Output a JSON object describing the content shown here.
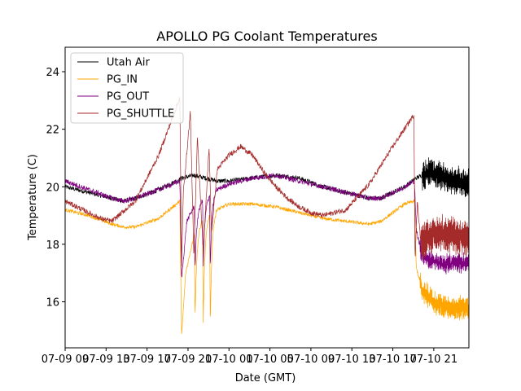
{
  "chart_data": {
    "type": "line",
    "title": "APOLLO PG Coolant Temperatures",
    "xlabel": "Date (GMT)",
    "ylabel": "Temperature (C)",
    "xlim": [
      0,
      34.5
    ],
    "ylim": [
      14.4,
      24.85
    ],
    "yticks": [
      16,
      18,
      20,
      22,
      24
    ],
    "ytick_labels": [
      "16",
      "18",
      "20",
      "22",
      "24"
    ],
    "xticks": [
      0,
      3.5,
      7,
      10.5,
      14,
      17.5,
      21,
      24.5,
      28,
      31.5
    ],
    "xtick_labels": [
      "07-09 09",
      "07-09 13",
      "07-09 17",
      "07-09 21",
      "07-10 01",
      "07-10 05",
      "07-10 09",
      "07-10 13",
      "07-10 17",
      "07-10 21"
    ],
    "x_units": "hours since 07-09 09:00 GMT",
    "legend_position": "upper-left",
    "series": [
      {
        "name": "Utah Air",
        "color": "#000000",
        "noise": 0.08,
        "x": [
          0,
          2,
          4,
          5,
          6,
          8,
          10,
          11,
          12,
          13,
          14,
          16,
          18,
          20,
          22,
          23,
          24,
          25,
          26,
          27,
          29,
          30,
          31,
          32,
          33,
          34.5
        ],
        "y": [
          20.0,
          19.8,
          19.6,
          19.5,
          19.6,
          19.9,
          20.3,
          20.4,
          20.3,
          20.2,
          20.2,
          20.3,
          20.4,
          20.3,
          20.0,
          19.9,
          19.8,
          19.7,
          19.6,
          19.6,
          20.0,
          20.3,
          20.5,
          20.4,
          20.2,
          20.1
        ],
        "osc_from": 30.5,
        "osc_amp": 0.5
      },
      {
        "name": "PG_IN",
        "color": "#ffa500",
        "noise": 0.06,
        "x": [
          0,
          2,
          4,
          5,
          6,
          8,
          9.8,
          9.95,
          10.3,
          11,
          11.5,
          12.5,
          14,
          16,
          18,
          20,
          22,
          24,
          26,
          27,
          29,
          29.85,
          30.0,
          30.5,
          31.5,
          32.5,
          34.5
        ],
        "y": [
          19.2,
          19.0,
          18.7,
          18.6,
          18.6,
          18.9,
          19.5,
          14.8,
          17.0,
          18.3,
          18.7,
          19.1,
          19.4,
          19.4,
          19.3,
          19.1,
          18.9,
          18.8,
          18.7,
          18.8,
          19.4,
          19.5,
          17.2,
          16.4,
          16.0,
          15.8,
          15.8
        ],
        "dips": [
          [
            11.1,
            15.4
          ],
          [
            11.8,
            15.2
          ],
          [
            12.4,
            15.1
          ]
        ],
        "osc_from": 30.3,
        "osc_amp": 0.4
      },
      {
        "name": "PG_OUT",
        "color": "#800080",
        "noise": 0.09,
        "x": [
          0,
          2,
          4,
          5,
          6,
          8,
          9.8,
          9.95,
          10.4,
          11,
          11.5,
          12.5,
          14,
          16,
          18,
          20,
          22,
          24,
          26,
          27,
          29,
          29.85,
          30.0,
          30.5,
          31.5,
          32.5,
          34.5
        ],
        "y": [
          20.2,
          19.9,
          19.6,
          19.5,
          19.6,
          19.9,
          20.2,
          16.8,
          18.8,
          19.3,
          19.4,
          19.8,
          20.1,
          20.3,
          20.4,
          20.2,
          20.0,
          19.8,
          19.6,
          19.6,
          20.0,
          20.2,
          18.5,
          17.6,
          17.4,
          17.3,
          17.4
        ],
        "dips": [
          [
            11.1,
            17.0
          ],
          [
            11.8,
            17.1
          ],
          [
            12.4,
            17.1
          ]
        ],
        "osc_from": 30.3,
        "osc_amp": 0.3
      },
      {
        "name": "PG_SHUTTLE",
        "color": "#a52a2a",
        "noise": 0.09,
        "x": [
          0,
          1,
          2,
          3,
          4,
          6,
          8,
          9.8,
          9.95,
          10.1,
          10.7,
          11.0,
          11.3,
          11.8,
          12.3,
          12.5,
          13,
          14,
          15,
          16,
          17,
          18,
          19,
          20,
          21,
          22,
          24,
          26,
          28,
          29.8,
          29.9,
          30.1,
          30.4,
          31,
          32,
          34.5
        ],
        "y": [
          19.5,
          19.3,
          19.1,
          18.9,
          18.8,
          19.5,
          21.1,
          23.1,
          17.2,
          19.8,
          22.6,
          17.5,
          21.8,
          17.7,
          21.4,
          18.4,
          20.6,
          21.1,
          21.4,
          21.1,
          20.5,
          20.0,
          19.6,
          19.3,
          19.1,
          19.0,
          19.2,
          20.1,
          21.4,
          22.5,
          17.5,
          19.5,
          18.0,
          18.3,
          18.4,
          18.2
        ],
        "osc_from": 30.4,
        "osc_amp": 0.6
      }
    ]
  }
}
